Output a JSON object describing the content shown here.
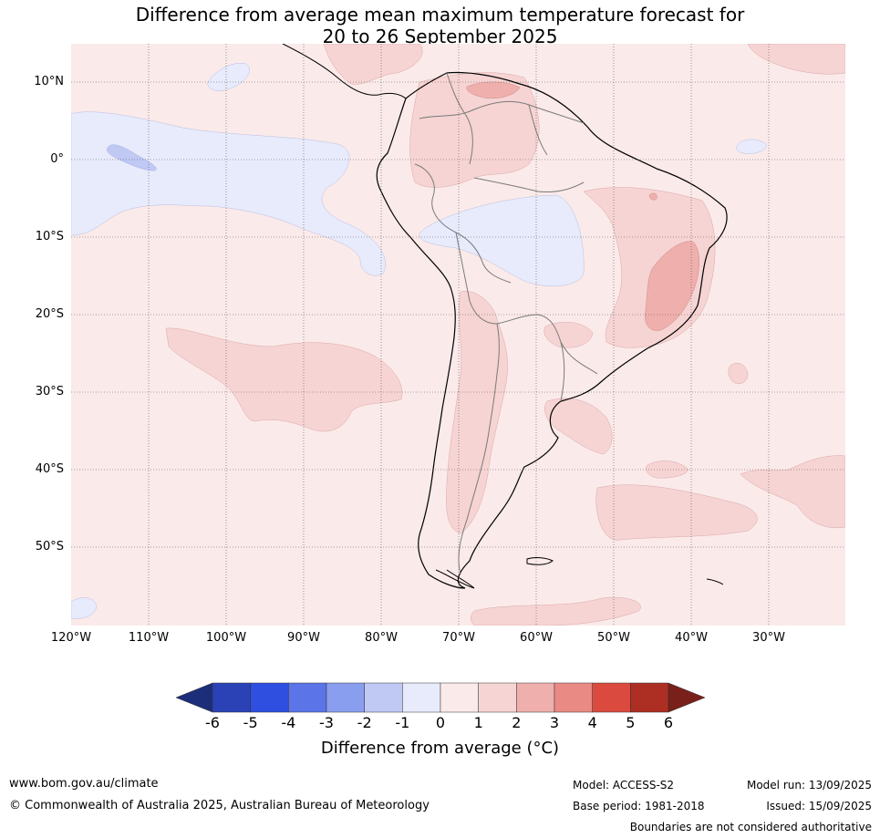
{
  "title_line1": "Difference from average mean maximum temperature forecast for",
  "title_line2": "20 to 26 September 2025",
  "lat_labels": [
    "10°N",
    "0°",
    "10°S",
    "20°S",
    "30°S",
    "40°S",
    "50°S"
  ],
  "lon_labels": [
    "120°W",
    "110°W",
    "100°W",
    "90°W",
    "80°W",
    "70°W",
    "60°W",
    "50°W",
    "40°W",
    "30°W"
  ],
  "colorbar": {
    "title": "Difference from average (°C)",
    "ticks": [
      "-6",
      "-5",
      "-4",
      "-3",
      "-2",
      "-1",
      "0",
      "1",
      "2",
      "3",
      "4",
      "5",
      "6"
    ],
    "colors": [
      "#1c2e7a",
      "#2a42b6",
      "#2e4fe0",
      "#5b74e8",
      "#8a9ef0",
      "#c0c8f4",
      "#e7ebfb",
      "#fbeaea",
      "#f6d4d3",
      "#efafac",
      "#ea8a84",
      "#db4a3e",
      "#ad2e22",
      "#782019"
    ]
  },
  "footer": {
    "website": "www.bom.gov.au/climate",
    "copyright": "© Commonwealth of Australia 2025, Australian Bureau of Meteorology",
    "model": "Model: ACCESS-S2",
    "base_period": "Base period: 1981-2018",
    "model_run": "Model run: 13/09/2025",
    "issued": "Issued: 15/09/2025",
    "disclaimer": "Boundaries are not considered authoritative"
  }
}
